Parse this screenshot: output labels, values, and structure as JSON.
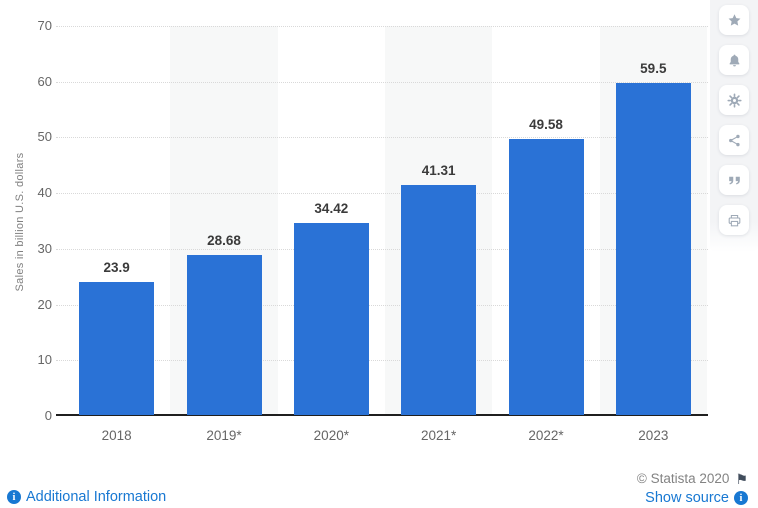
{
  "chart_data": {
    "type": "bar",
    "title": "",
    "xlabel": "",
    "ylabel": "Sales in billion U.S. dollars",
    "categories": [
      "2018",
      "2019*",
      "2020*",
      "2021*",
      "2022*",
      "2023"
    ],
    "values": [
      23.9,
      28.68,
      34.42,
      41.31,
      49.58,
      59.5
    ],
    "value_labels": [
      "23.9",
      "28.68",
      "34.42",
      "41.31",
      "49.58",
      "59.5"
    ],
    "ylim": [
      0,
      70
    ],
    "ytick_step": 10,
    "grid": "horizontal-dotted",
    "legend": "none",
    "bar_color": "#2a72d6",
    "alt_band_color": "#f7f8f8",
    "value_label_color": "#3b3b3b",
    "axis_text_color": "#666666"
  },
  "sidebar": {
    "buttons": [
      {
        "name": "favorite",
        "icon": "star"
      },
      {
        "name": "notifications",
        "icon": "bell"
      },
      {
        "name": "settings",
        "icon": "gear"
      },
      {
        "name": "share",
        "icon": "share"
      },
      {
        "name": "cite",
        "icon": "quote"
      },
      {
        "name": "print",
        "icon": "printer"
      }
    ]
  },
  "footer": {
    "additional_information": "Additional Information",
    "copyright": "© Statista 2020",
    "show_source": "Show source"
  },
  "colors": {
    "link_blue": "#1878d2",
    "bar_blue": "#2a72d6"
  }
}
